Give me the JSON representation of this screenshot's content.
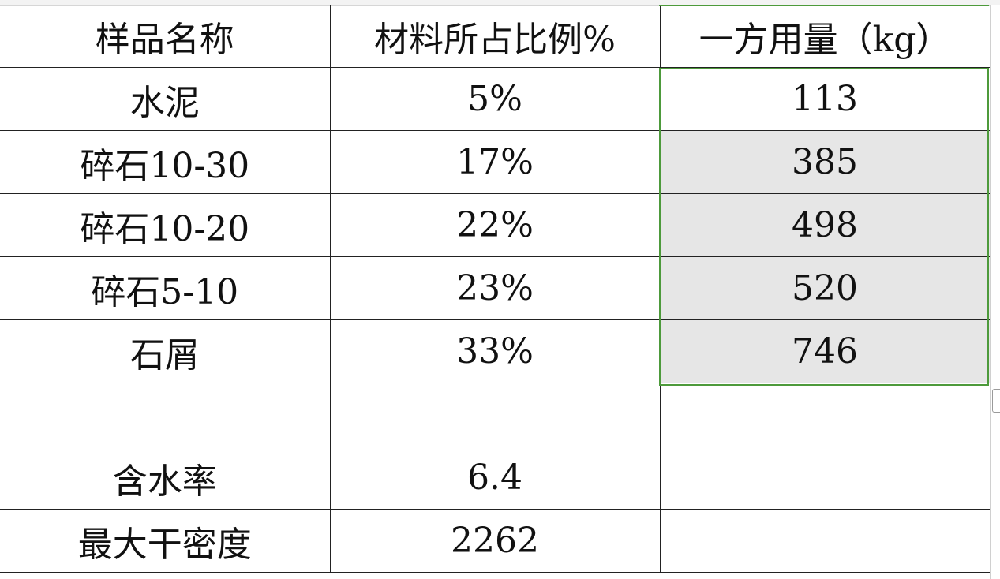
{
  "columns": {
    "name": "样品名称",
    "ratio": "材料所占比例%",
    "amount": "一方用量（kg）"
  },
  "rows": [
    {
      "name": "水泥",
      "ratio": "5%",
      "amount": "113"
    },
    {
      "name": "碎石10-30",
      "ratio": "17%",
      "amount": "385"
    },
    {
      "name": "碎石10-20",
      "ratio": "22%",
      "amount": "498"
    },
    {
      "name": "碎石5-10",
      "ratio": "23%",
      "amount": "520"
    },
    {
      "name": "石屑",
      "ratio": "33%",
      "amount": "746"
    }
  ],
  "extra": [
    {
      "name": "含水率",
      "value": "6.4"
    },
    {
      "name": "最大干密度",
      "value": "2262"
    }
  ],
  "colors": {
    "selection_border": "#4d9a3b",
    "selected_fill": "#e6e6e6",
    "grid_line": "#222222"
  }
}
